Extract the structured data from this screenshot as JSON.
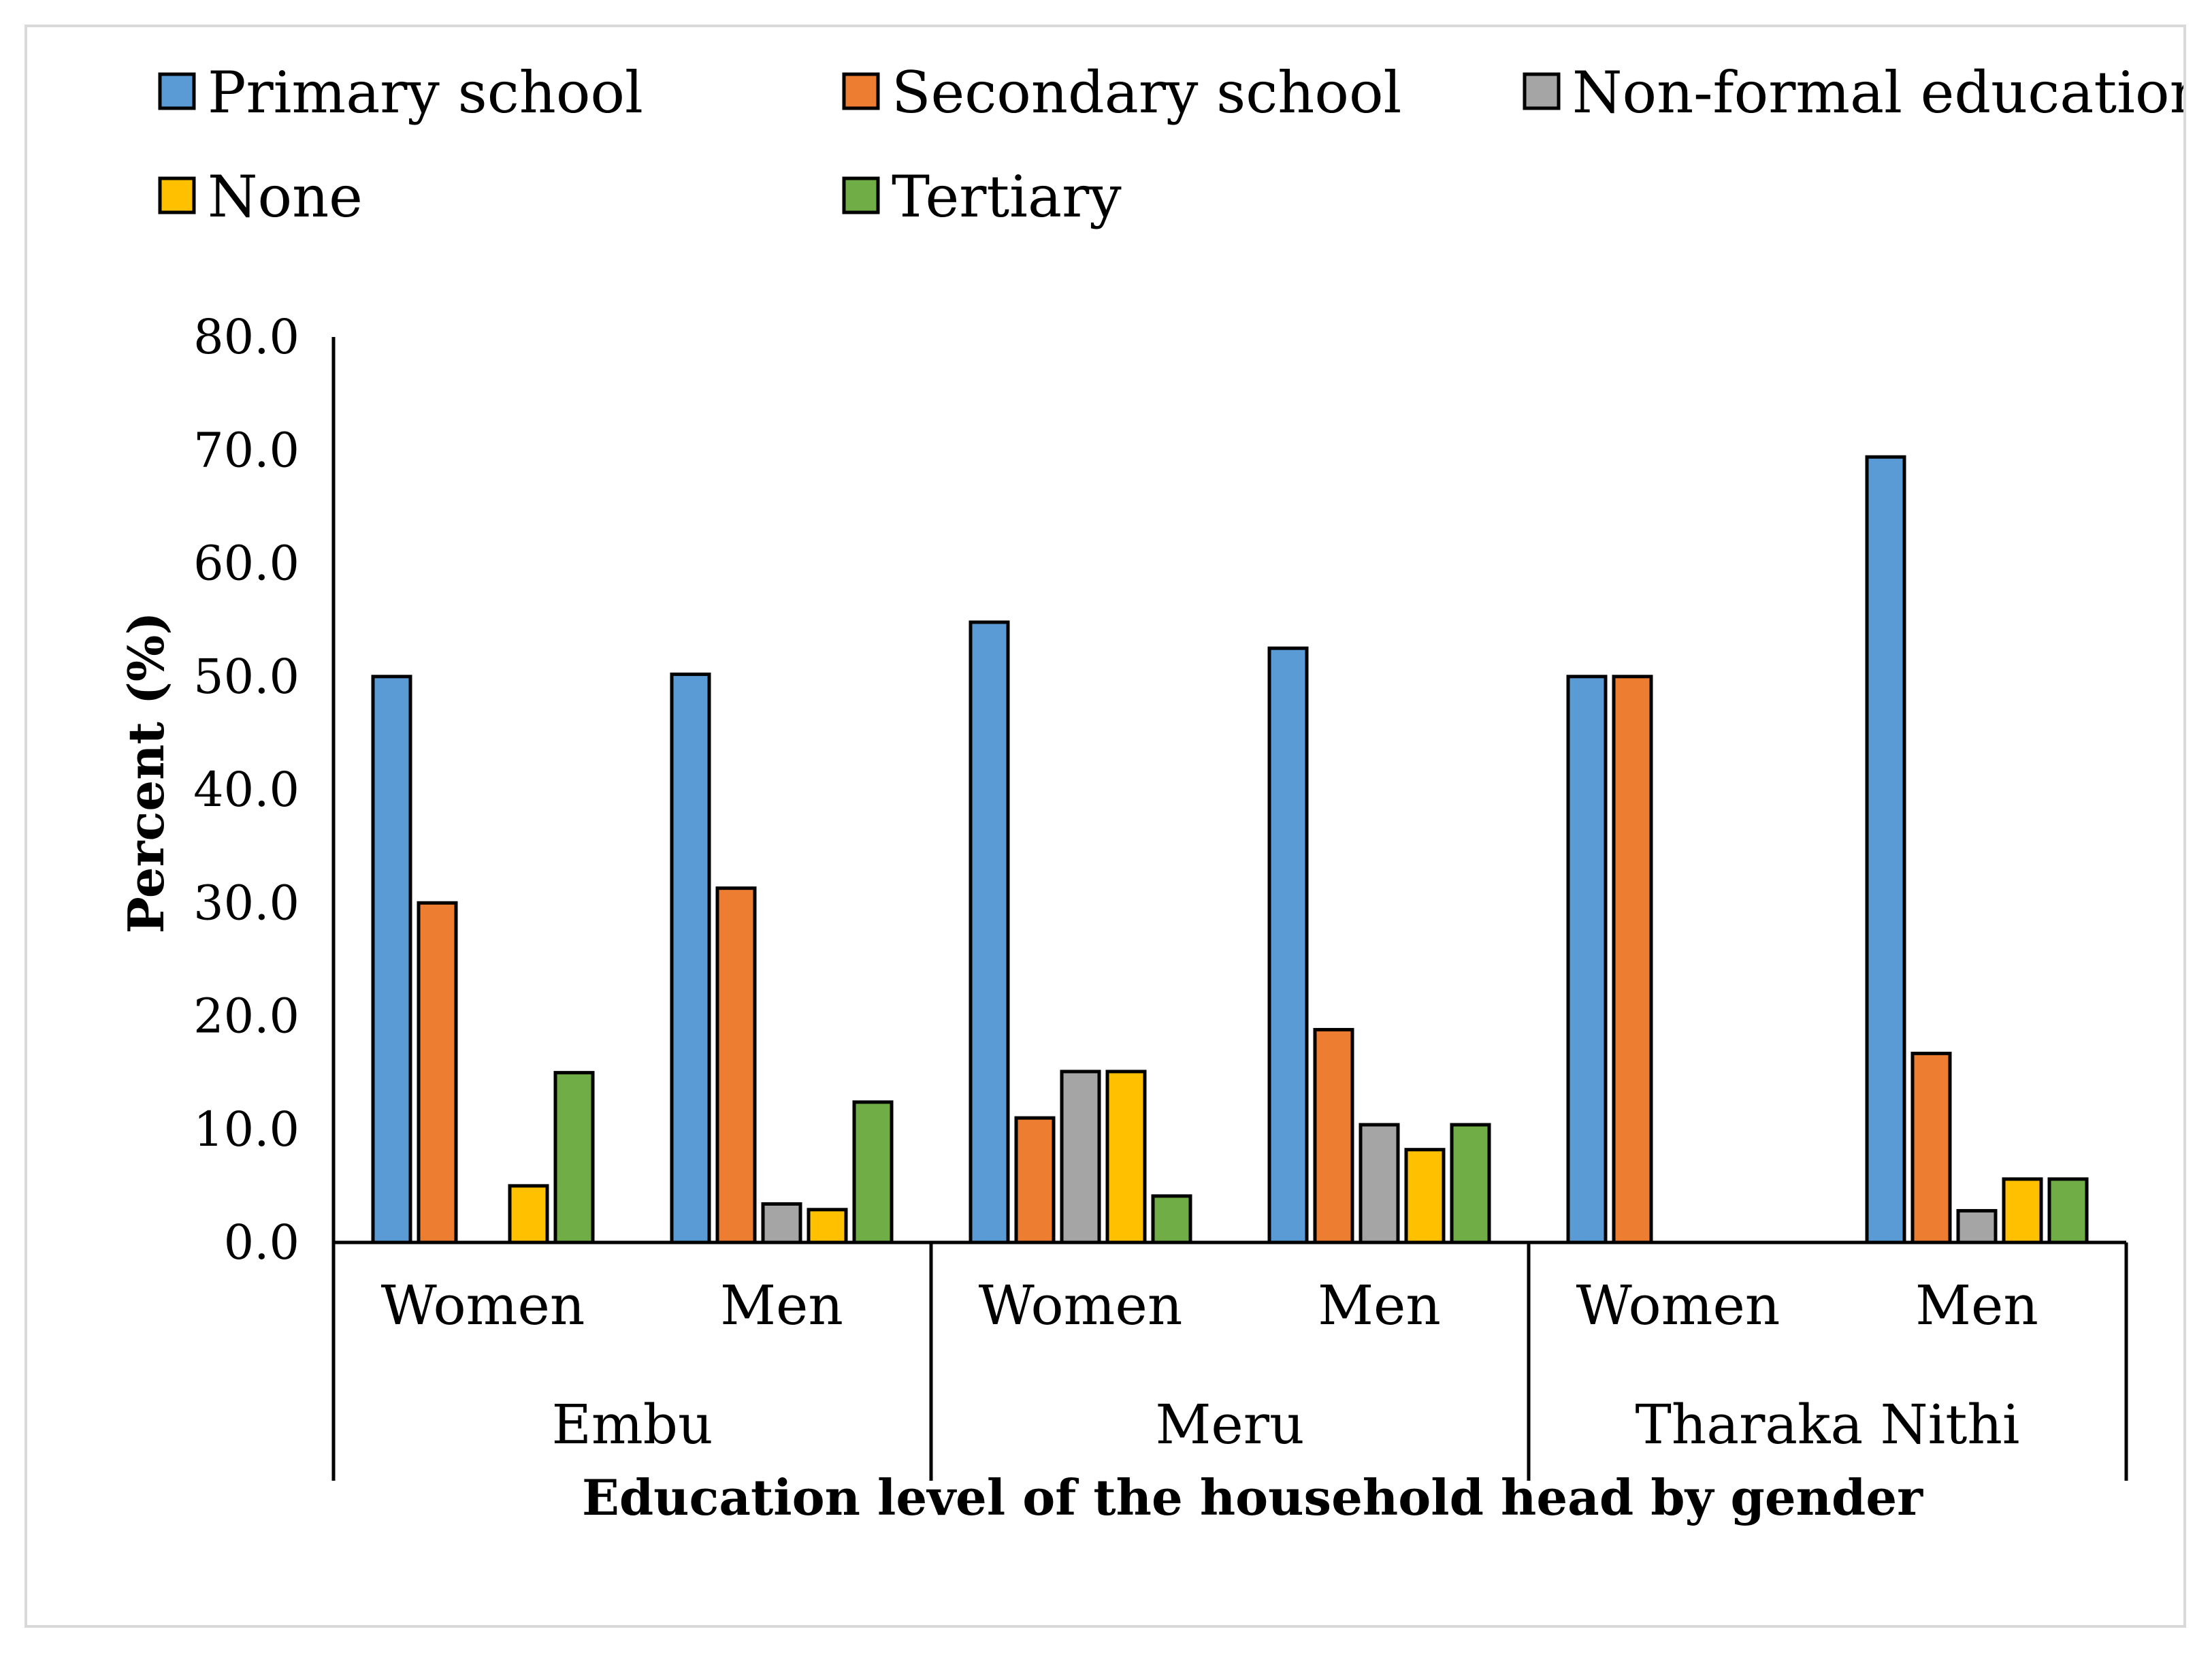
{
  "chart_data": {
    "type": "bar",
    "xlabel": "Education level of the household head by gender",
    "ylabel": "Percent (%)",
    "ylim": [
      0,
      80
    ],
    "ytick_step": 10,
    "yticks": [
      "0.0",
      "10.0",
      "20.0",
      "30.0",
      "40.0",
      "50.0",
      "60.0",
      "70.0",
      "80.0"
    ],
    "grid": false,
    "legend_position": "top",
    "groups": [
      {
        "name": "Embu",
        "subcategories": [
          "Women",
          "Men"
        ]
      },
      {
        "name": "Meru",
        "subcategories": [
          "Women",
          "Men"
        ]
      },
      {
        "name": "Tharaka Nithi",
        "subcategories": [
          "Women",
          "Men"
        ]
      }
    ],
    "categories": [
      "Embu Women",
      "Embu Men",
      "Meru Women",
      "Meru Men",
      "Tharaka Nithi Women",
      "Tharaka Nithi Men"
    ],
    "series": [
      {
        "name": "Primary school",
        "color": "#5b9bd5",
        "values": [
          50.0,
          50.2,
          54.8,
          52.5,
          50.0,
          69.4
        ]
      },
      {
        "name": "Secondary school",
        "color": "#ed7d31",
        "values": [
          30.0,
          31.3,
          11.0,
          18.8,
          50.0,
          16.7
        ]
      },
      {
        "name": "Non-formal education",
        "color": "#a5a5a5",
        "values": [
          0.0,
          3.4,
          15.1,
          10.4,
          0.0,
          2.8
        ]
      },
      {
        "name": "None",
        "color": "#ffc000",
        "values": [
          5.0,
          2.9,
          15.1,
          8.2,
          0.0,
          5.6
        ]
      },
      {
        "name": "Tertiary",
        "color": "#70ad47",
        "values": [
          15.0,
          12.4,
          4.1,
          10.4,
          0.0,
          5.6
        ]
      }
    ]
  }
}
